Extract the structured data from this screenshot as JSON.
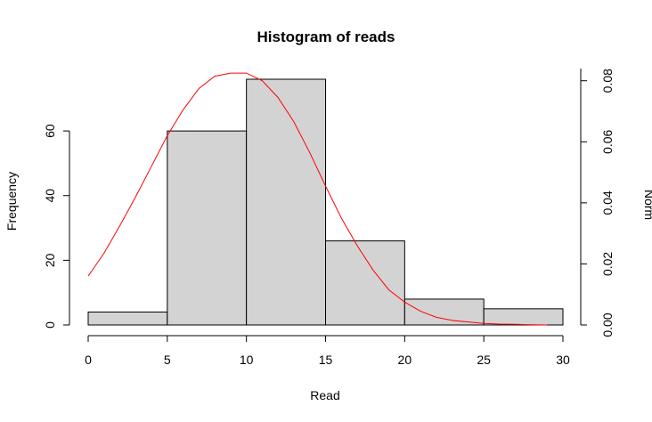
{
  "chart_data": {
    "type": "bar",
    "title": "Histogram of reads",
    "xlabel": "Read",
    "ylabel": "Frequency",
    "y2label": "Norm",
    "bins": [
      {
        "from": 0,
        "to": 5,
        "value": 4
      },
      {
        "from": 5,
        "to": 10,
        "value": 60
      },
      {
        "from": 10,
        "to": 15,
        "value": 76
      },
      {
        "from": 15,
        "to": 20,
        "value": 26
      },
      {
        "from": 20,
        "to": 25,
        "value": 8
      },
      {
        "from": 25,
        "to": 30,
        "value": 5
      }
    ],
    "bar_fill": "#d3d3d3",
    "xlim": [
      0,
      30
    ],
    "ylim": [
      0,
      76
    ],
    "y2lim": [
      0,
      0.084
    ],
    "x_ticks": [
      "0",
      "5",
      "10",
      "15",
      "20",
      "25",
      "30"
    ],
    "x_tick_values": [
      0,
      5,
      10,
      15,
      20,
      25,
      30
    ],
    "y_ticks": [
      "0",
      "20",
      "40",
      "60"
    ],
    "y_tick_values": [
      0,
      20,
      40,
      60
    ],
    "y2_ticks": [
      "0.00",
      "0.02",
      "0.04",
      "0.06",
      "0.08"
    ],
    "y2_tick_values": [
      0,
      0.02,
      0.04,
      0.06,
      0.08
    ],
    "series": [
      {
        "type": "line",
        "axis": "right",
        "color": "#ff0000",
        "x": [
          0,
          1,
          2,
          3,
          4,
          5,
          6,
          7,
          8,
          9,
          10,
          11,
          12,
          13,
          14,
          15,
          16,
          17,
          18,
          19,
          20,
          21,
          22,
          23,
          24,
          25,
          26,
          27,
          28,
          29
        ],
        "y": [
          0.016,
          0.0235,
          0.0325,
          0.042,
          0.052,
          0.062,
          0.0705,
          0.0775,
          0.0815,
          0.0825,
          0.0825,
          0.08,
          0.0745,
          0.0665,
          0.0565,
          0.0455,
          0.035,
          0.026,
          0.018,
          0.0115,
          0.0075,
          0.0045,
          0.0025,
          0.0015,
          0.001,
          0.0005,
          0.0003,
          0.0002,
          0.0001,
          0.0
        ]
      }
    ]
  }
}
